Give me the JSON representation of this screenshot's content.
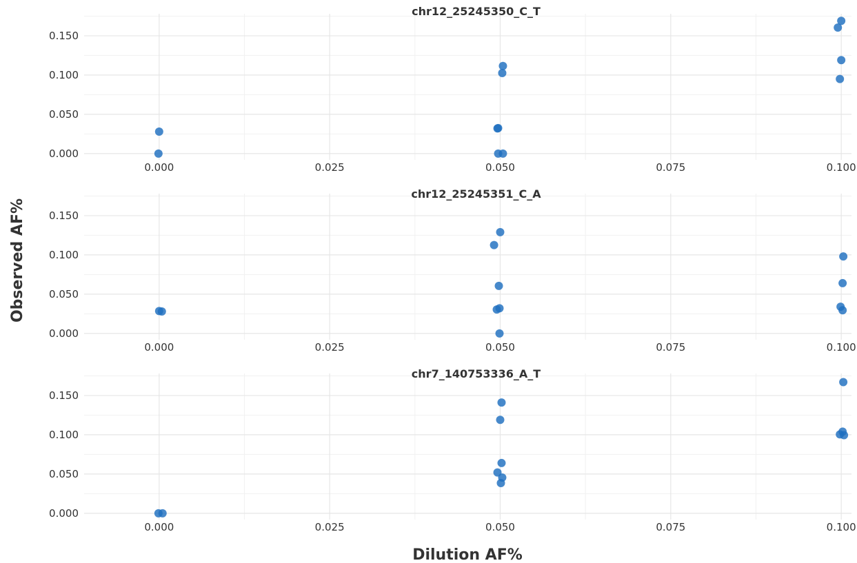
{
  "chart_data": [
    {
      "type": "scatter",
      "title": "chr12_25245350_C_T",
      "xlim": [
        -0.011,
        0.1015
      ],
      "ylim": [
        -0.008,
        0.178
      ],
      "x_ticks": [
        0.0,
        0.025,
        0.05,
        0.075,
        0.1
      ],
      "x_tick_labels": [
        "0.000",
        "0.025",
        "0.050",
        "0.075",
        "0.100"
      ],
      "y_ticks": [
        0.0,
        0.05,
        0.1,
        0.15
      ],
      "y_tick_labels": [
        "0.000",
        "0.050",
        "0.100",
        "0.150"
      ],
      "grid": true,
      "points": [
        {
          "x": 0.0,
          "y": 0.028
        },
        {
          "x": -0.0001,
          "y": 0.0
        },
        {
          "x": 0.0496,
          "y": 0.032
        },
        {
          "x": 0.0497,
          "y": 0.0325
        },
        {
          "x": 0.0497,
          "y": 0.0
        },
        {
          "x": 0.0504,
          "y": 0.0
        },
        {
          "x": 0.0503,
          "y": 0.1025
        },
        {
          "x": 0.0504,
          "y": 0.1115
        },
        {
          "x": 0.0995,
          "y": 0.1605
        },
        {
          "x": 0.1,
          "y": 0.169
        },
        {
          "x": 0.1,
          "y": 0.119
        },
        {
          "x": 0.0998,
          "y": 0.095
        }
      ]
    },
    {
      "type": "scatter",
      "title": "chr12_25245351_C_A",
      "xlim": [
        -0.011,
        0.1015
      ],
      "ylim": [
        -0.008,
        0.178
      ],
      "x_ticks": [
        0.0,
        0.025,
        0.05,
        0.075,
        0.1
      ],
      "x_tick_labels": [
        "0.000",
        "0.025",
        "0.050",
        "0.075",
        "0.100"
      ],
      "y_ticks": [
        0.0,
        0.05,
        0.1,
        0.15
      ],
      "y_tick_labels": [
        "0.000",
        "0.050",
        "0.100",
        "0.150"
      ],
      "grid": true,
      "points": [
        {
          "x": 0.0,
          "y": 0.0285
        },
        {
          "x": 0.0004,
          "y": 0.028
        },
        {
          "x": 0.0491,
          "y": 0.1125
        },
        {
          "x": 0.05,
          "y": 0.129
        },
        {
          "x": 0.0498,
          "y": 0.0605
        },
        {
          "x": 0.0495,
          "y": 0.0305
        },
        {
          "x": 0.0499,
          "y": 0.032
        },
        {
          "x": 0.0499,
          "y": 0.0
        },
        {
          "x": 0.1003,
          "y": 0.098
        },
        {
          "x": 0.1002,
          "y": 0.064
        },
        {
          "x": 0.0999,
          "y": 0.034
        },
        {
          "x": 0.1002,
          "y": 0.0295
        }
      ]
    },
    {
      "type": "scatter",
      "title": "chr7_140753336_A_T",
      "xlim": [
        -0.011,
        0.1015
      ],
      "ylim": [
        -0.008,
        0.178
      ],
      "x_ticks": [
        0.0,
        0.025,
        0.05,
        0.075,
        0.1
      ],
      "x_tick_labels": [
        "0.000",
        "0.025",
        "0.050",
        "0.075",
        "0.100"
      ],
      "y_ticks": [
        0.0,
        0.05,
        0.1,
        0.15
      ],
      "y_tick_labels": [
        "0.000",
        "0.050",
        "0.100",
        "0.150"
      ],
      "grid": true,
      "points": [
        {
          "x": -0.0001,
          "y": 0.0
        },
        {
          "x": 0.0005,
          "y": 0.0
        },
        {
          "x": 0.0502,
          "y": 0.141
        },
        {
          "x": 0.05,
          "y": 0.119
        },
        {
          "x": 0.0502,
          "y": 0.064
        },
        {
          "x": 0.0496,
          "y": 0.052
        },
        {
          "x": 0.0503,
          "y": 0.0455
        },
        {
          "x": 0.0501,
          "y": 0.0385
        },
        {
          "x": 0.1003,
          "y": 0.167
        },
        {
          "x": 0.0998,
          "y": 0.1005
        },
        {
          "x": 0.1002,
          "y": 0.104
        },
        {
          "x": 0.1004,
          "y": 0.0995
        }
      ]
    }
  ],
  "axes": {
    "xlabel": "Dilution AF%",
    "ylabel": "Observed AF%"
  },
  "colors": {
    "point": "#1f6fbf",
    "grid_major": "#e6e6e6",
    "grid_minor": "#f1f1f1",
    "text": "#333333"
  }
}
